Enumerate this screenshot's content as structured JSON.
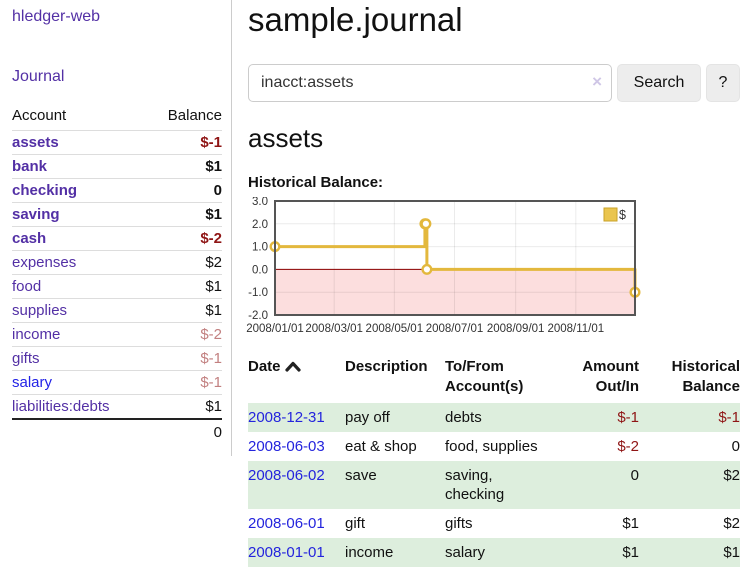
{
  "app": {
    "title": "hledger-web"
  },
  "sidebar": {
    "journal_link": "Journal",
    "accounts_header": {
      "account": "Account",
      "balance": "Balance"
    },
    "accounts": [
      {
        "name": "assets",
        "depth": 1,
        "bold": true,
        "balance": "$-1",
        "balance_style": "neg-strong"
      },
      {
        "name": "bank",
        "depth": 2,
        "bold": true,
        "balance": "$1",
        "balance_style": "pos"
      },
      {
        "name": "checking",
        "depth": 3,
        "bold": true,
        "balance": "0",
        "balance_style": "pos"
      },
      {
        "name": "saving",
        "depth": 3,
        "bold": true,
        "balance": "$1",
        "balance_style": "pos"
      },
      {
        "name": "cash",
        "depth": 2,
        "bold": true,
        "balance": "$-2",
        "balance_style": "neg-strong"
      },
      {
        "name": "expenses",
        "depth": 1,
        "bold": false,
        "balance": "$2",
        "balance_style": "pos"
      },
      {
        "name": "food",
        "depth": 2,
        "bold": false,
        "balance": "$1",
        "balance_style": "pos"
      },
      {
        "name": "supplies",
        "depth": 2,
        "bold": false,
        "balance": "$1",
        "balance_style": "pos"
      },
      {
        "name": "income",
        "depth": 1,
        "bold": false,
        "balance": "$-2",
        "balance_style": "neg-soft"
      },
      {
        "name": "gifts",
        "depth": 2,
        "bold": false,
        "balance": "$-1",
        "balance_style": "neg-soft"
      },
      {
        "name": "salary",
        "depth": 2,
        "bold": false,
        "balance": "$-1",
        "balance_style": "neg-soft",
        "link_style": "unvisited"
      },
      {
        "name": "liabilities:debts",
        "depth": 1,
        "bold": false,
        "balance": "$1",
        "balance_style": "pos"
      }
    ],
    "total": "0"
  },
  "header": {
    "title": "sample.journal"
  },
  "search": {
    "value": "inacct:assets",
    "clear_icon": "×",
    "button": "Search",
    "help_button": "?"
  },
  "register": {
    "heading": "assets",
    "chart_label": "Historical Balance:",
    "table": {
      "headers": [
        "Date",
        "Description",
        "To/From Account(s)",
        "Amount Out/In",
        "Historical Balance"
      ],
      "sort_column": "Date",
      "sort_direction": "ascending",
      "rows": [
        {
          "date": "2008-12-31",
          "description": "pay off",
          "accounts": "debts",
          "amount": "$-1",
          "amount_neg": true,
          "balance": "$-1",
          "balance_neg": true
        },
        {
          "date": "2008-06-03",
          "description": "eat & shop",
          "accounts": "food, supplies",
          "amount": "$-2",
          "amount_neg": true,
          "balance": "0",
          "balance_neg": false
        },
        {
          "date": "2008-06-02",
          "description": "save",
          "accounts": "saving, checking",
          "amount": "0",
          "amount_neg": false,
          "balance": "$2",
          "balance_neg": false
        },
        {
          "date": "2008-06-01",
          "description": "gift",
          "accounts": "gifts",
          "amount": "$1",
          "amount_neg": false,
          "balance": "$2",
          "balance_neg": false
        },
        {
          "date": "2008-01-01",
          "description": "income",
          "accounts": "salary",
          "amount": "$1",
          "amount_neg": false,
          "balance": "$1",
          "balance_neg": false
        }
      ]
    }
  },
  "chart_data": {
    "type": "line",
    "style": "step",
    "title": "Historical Balance",
    "series": [
      {
        "name": "$",
        "points": [
          [
            "2008-01-01",
            1
          ],
          [
            "2008-06-01",
            2
          ],
          [
            "2008-06-02",
            2
          ],
          [
            "2008-06-03",
            0
          ],
          [
            "2008-12-31",
            -1
          ]
        ]
      }
    ],
    "x_ticks": [
      "2008/01/01",
      "2008/03/01",
      "2008/05/01",
      "2008/07/01",
      "2008/09/01",
      "2008/11/01"
    ],
    "y_ticks": [
      3.0,
      2.0,
      1.0,
      0.0,
      -1.0,
      -2.0
    ],
    "xlim": [
      "2008-01-01",
      "2008-12-31"
    ],
    "ylim": [
      -2,
      3
    ],
    "grid": true,
    "legend_position": "top-right",
    "negative_region_highlight": true
  },
  "colors": {
    "link_purple": "#5330a5",
    "link_blue": "#2323e6",
    "negative_strong": "#8f1515",
    "negative_soft": "#c28080",
    "row_stripe_green": "#ddeedd",
    "chart_series": "#e3b83d",
    "chart_series_fill": "#eac54f",
    "chart_series_border": "#c9a227",
    "chart_negative_bg": "#fcdede",
    "chart_zero_line": "#8b0000",
    "chart_border": "#555555",
    "chart_grid": "rgba(0,0,0,0.08)"
  }
}
